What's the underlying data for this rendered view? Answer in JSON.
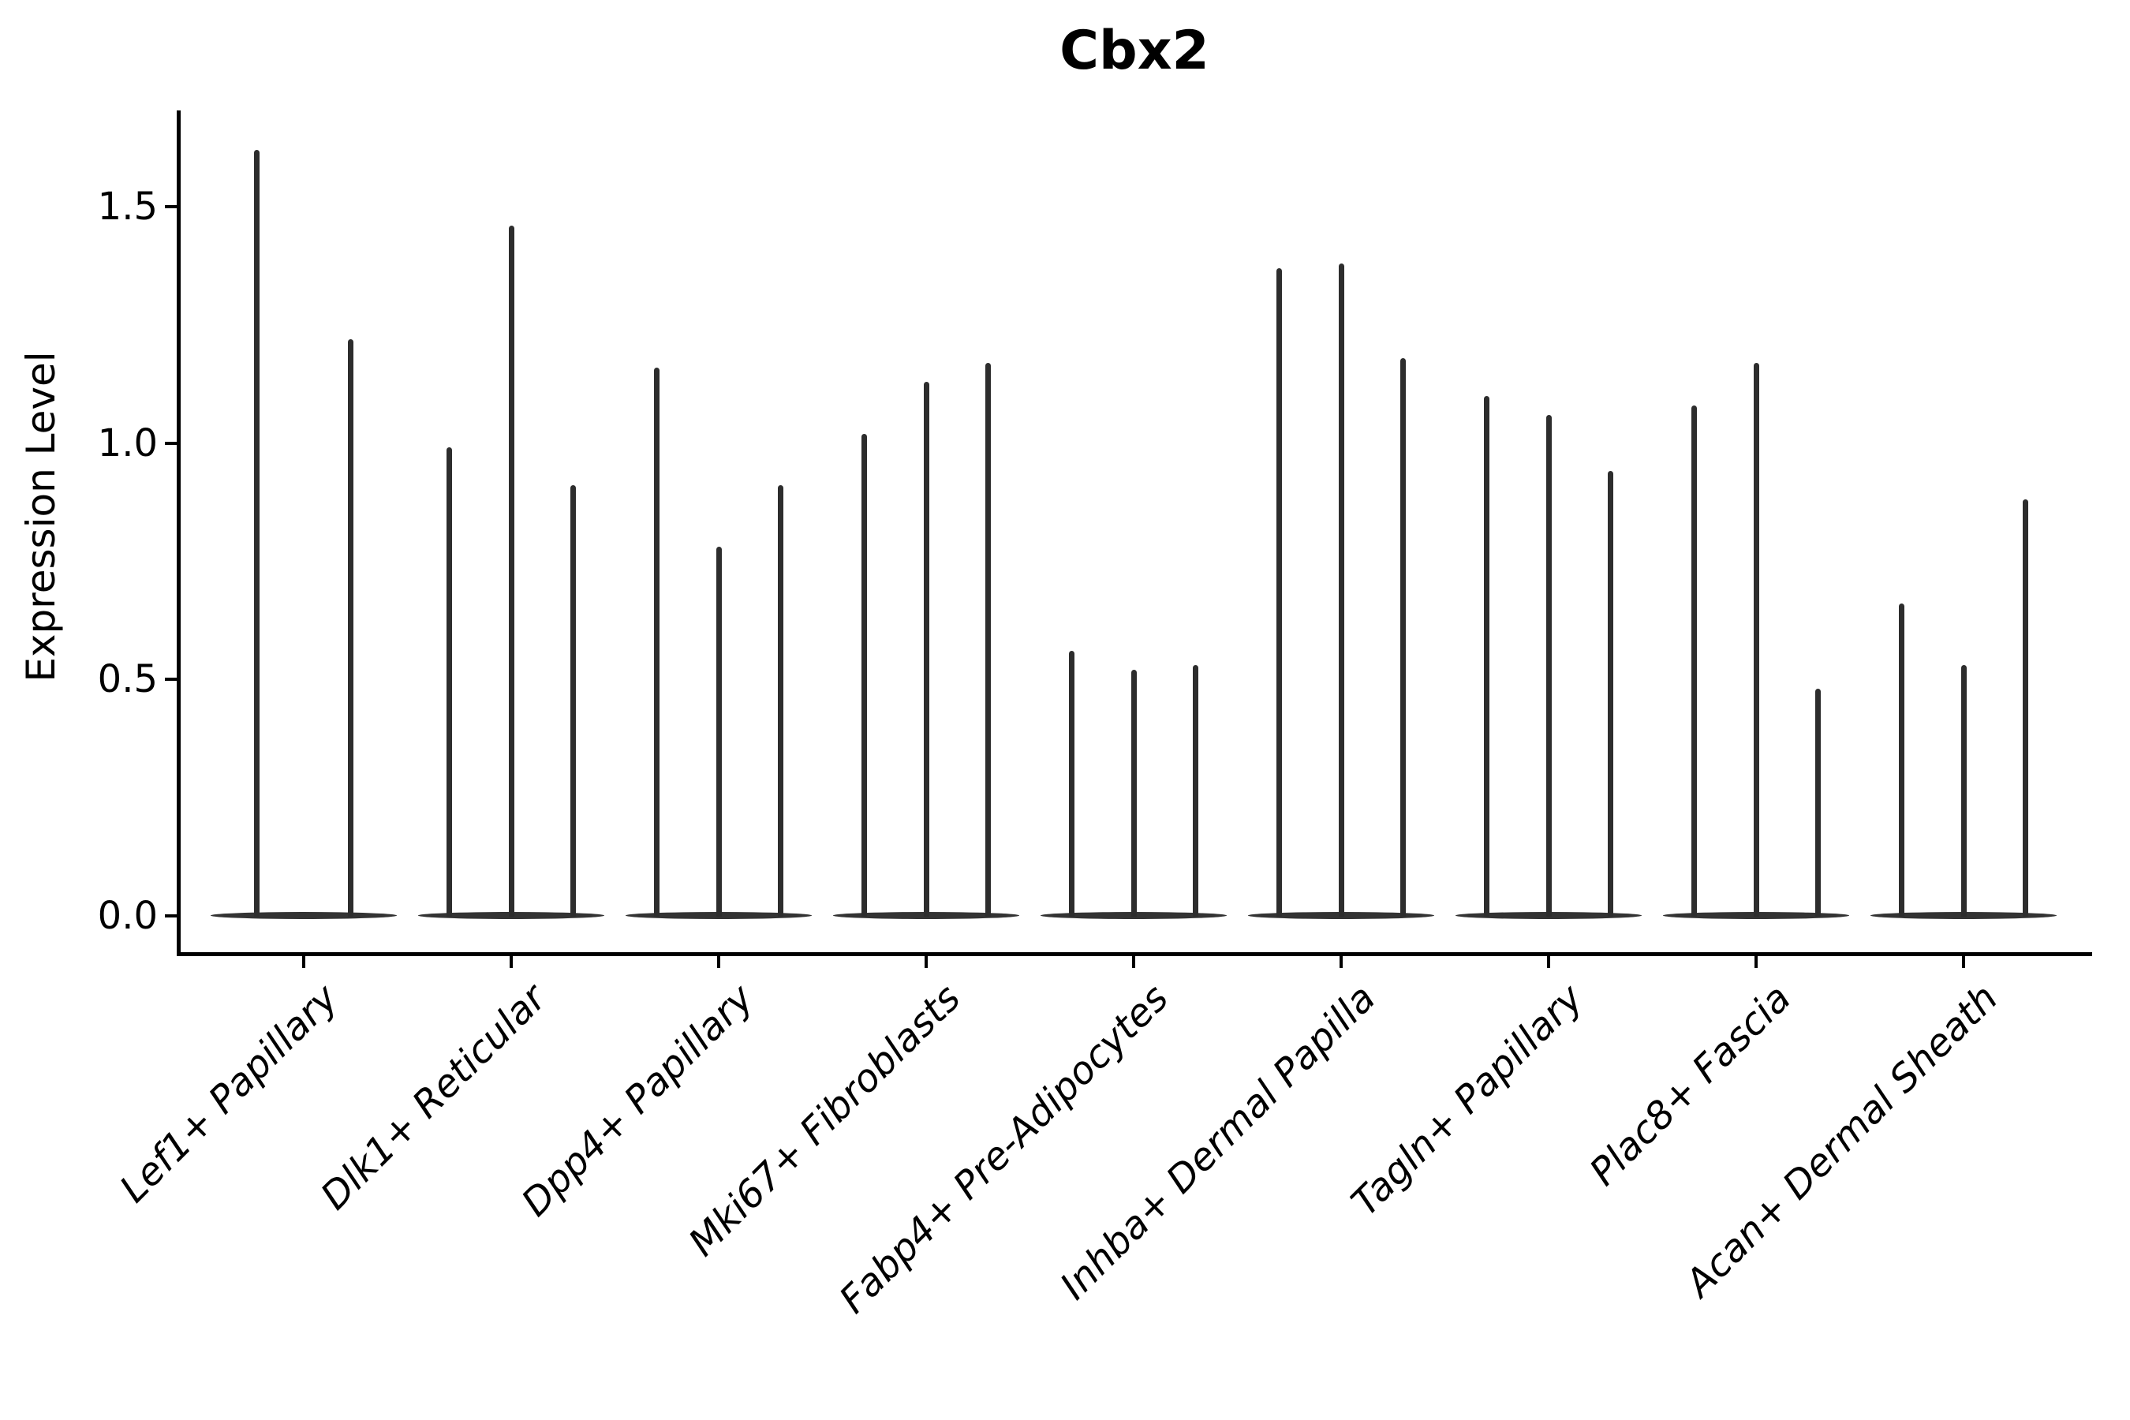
{
  "chart_data": {
    "type": "violin",
    "title": "Cbx2",
    "ylabel": "Expression Level",
    "xlabel": "",
    "yticks": [
      "0.0",
      "0.5",
      "1.0",
      "1.5"
    ],
    "ytick_values": [
      0.0,
      0.5,
      1.0,
      1.5
    ],
    "ylim": [
      0,
      1.7
    ],
    "grid": false,
    "legend": "none",
    "violin_color": "#2d2d2d",
    "axis_color": "#000000",
    "categories": [
      "Lef1+ Papillary",
      "Dlk1+ Reticular",
      "Dpp4+ Papillary",
      "Mki67+ Fibroblasts",
      "Fabp4+ Pre-Adipocytes",
      "Inhba+ Dermal Papilla",
      "Tagln+ Papillary",
      "Plac8+ Fascia",
      "Acan+ Dermal Sheath"
    ],
    "series": [
      {
        "category": "Lef1+ Papillary",
        "violin_max_values": [
          1.62,
          1.22
        ]
      },
      {
        "category": "Dlk1+ Reticular",
        "violin_max_values": [
          0.99,
          1.46,
          0.91
        ]
      },
      {
        "category": "Dpp4+ Papillary",
        "violin_max_values": [
          1.16,
          0.78,
          0.91
        ]
      },
      {
        "category": "Mki67+ Fibroblasts",
        "violin_max_values": [
          1.02,
          1.13,
          1.17
        ]
      },
      {
        "category": "Fabp4+ Pre-Adipocytes",
        "violin_max_values": [
          0.56,
          0.52,
          0.53
        ]
      },
      {
        "category": "Inhba+ Dermal Papilla",
        "violin_max_values": [
          1.37,
          1.38,
          1.18
        ]
      },
      {
        "category": "Tagln+ Papillary",
        "violin_max_values": [
          1.1,
          1.06,
          0.94
        ]
      },
      {
        "category": "Plac8+ Fascia",
        "violin_max_values": [
          1.08,
          1.17,
          0.48
        ]
      },
      {
        "category": "Acan+ Dermal Sheath",
        "violin_max_values": [
          0.66,
          0.53,
          0.88
        ]
      }
    ]
  }
}
